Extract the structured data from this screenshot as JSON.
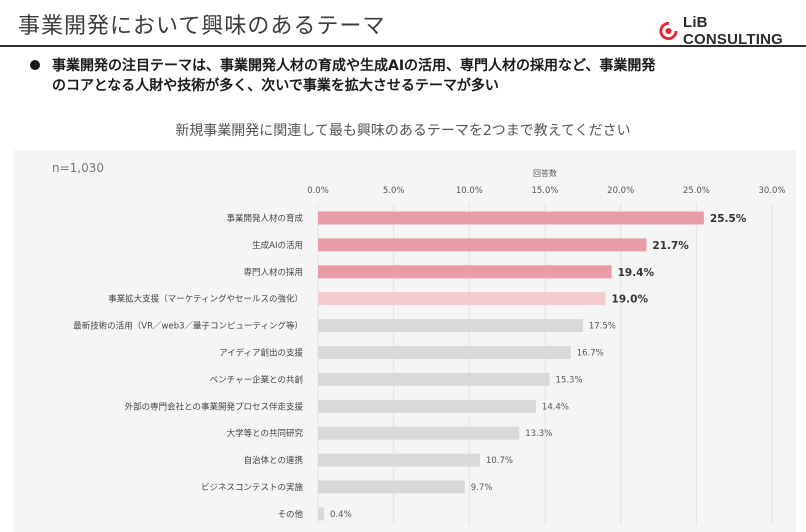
{
  "header": {
    "title": "事業開発において興味のあるテーマ",
    "logo_text": "LiB CONSULTING",
    "brand_color": "#e4242b"
  },
  "key_message": {
    "line1": "事業開発の注目テーマは、事業開発人材の育成や生成AIの活用、専門人材の採用など、事業開発",
    "line2": "のコアとなる人財や技術が多く、次いで事業を拡大させるテーマが多い"
  },
  "question": "新規事業開発に関連して最も興味のあるテーマを2つまで教えてください",
  "sample_size": "n=1,030",
  "chart_data": {
    "type": "bar",
    "orientation": "horizontal",
    "title": "新規事業開発に関連して最も興味のあるテーマを2つまで教えてください",
    "xlabel": "回答数",
    "ylabel": "",
    "xlim": [
      0,
      30
    ],
    "x_ticks": [
      "0.0%",
      "5.0%",
      "10.0%",
      "15.0%",
      "20.0%",
      "25.0%",
      "30.0%"
    ],
    "x_tick_values": [
      0,
      5,
      10,
      15,
      20,
      25,
      30
    ],
    "grid": true,
    "categories": [
      "事業開発人材の育成",
      "生成AIの活用",
      "専門人材の採用",
      "事業拡大支援（マーケティングやセールスの強化）",
      "最新技術の活用（VR／web3／量子コンピューティング等）",
      "アイディア創出の支援",
      "ベンチャー企業との共創",
      "外部の専門会社との事業開発プロセス伴走支援",
      "大学等との共同研究",
      "自治体との連携",
      "ビジネスコンテストの実施",
      "その他"
    ],
    "values": [
      25.5,
      21.7,
      19.4,
      19.0,
      17.5,
      16.7,
      15.3,
      14.4,
      13.3,
      10.7,
      9.7,
      0.4
    ],
    "value_labels": [
      "25.5%",
      "21.7%",
      "19.4%",
      "19.0%",
      "17.5%",
      "16.7%",
      "15.3%",
      "14.4%",
      "13.3%",
      "10.7%",
      "9.7%",
      "0.4%"
    ],
    "colors": [
      "#e99ca6",
      "#e99ca6",
      "#e99ca6",
      "#f5cbd0",
      "#d9d9d9",
      "#d9d9d9",
      "#d9d9d9",
      "#d9d9d9",
      "#d9d9d9",
      "#d9d9d9",
      "#d9d9d9",
      "#d9d9d9"
    ],
    "highlight_count": 4
  }
}
